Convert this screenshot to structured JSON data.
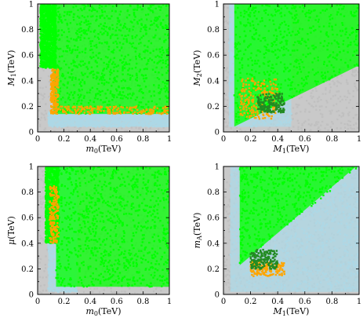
{
  "figure": {
    "layout": "2x2 grid of scatter panels"
  },
  "chart_data": [
    {
      "type": "scatter",
      "x_label": "m",
      "x_label_sub": "0",
      "x_label_unit": "(TeV)",
      "y_label": "M",
      "y_label_sub": "1",
      "y_label_unit": "(TeV)",
      "xlim": [
        0,
        1
      ],
      "ylim": [
        0,
        1
      ],
      "x_ticks": [
        "0",
        "0.2",
        "0.4",
        "0.6",
        "0.8",
        "1"
      ],
      "y_ticks": [
        "0",
        "0.2",
        "0.4",
        "0.6",
        "0.8",
        "1"
      ],
      "grid": false,
      "legend": "none",
      "series_colors": [
        "#c0c0c0",
        "#add8e6",
        "#00ff00",
        "#ffa500",
        "#228b22"
      ],
      "regions": [
        {
          "color": "#c0c0c0",
          "kind": "rect",
          "x": [
            0,
            1
          ],
          "y": [
            0,
            1
          ]
        },
        {
          "color": "#add8e6",
          "kind": "rect",
          "x": [
            0.08,
            1
          ],
          "y": [
            0.04,
            0.16
          ]
        },
        {
          "color": "#00ff00",
          "kind": "rect",
          "x": [
            0.12,
            1
          ],
          "y": [
            0.14,
            1
          ]
        },
        {
          "color": "#00ff00",
          "kind": "rect",
          "x": [
            0.02,
            0.14
          ],
          "y": [
            0.5,
            1
          ]
        },
        {
          "color": "#ffa500",
          "kind": "band",
          "x": [
            0.1,
            1
          ],
          "y": [
            0.14,
            0.2
          ]
        },
        {
          "color": "#ffa500",
          "kind": "band",
          "x": [
            0.1,
            0.16
          ],
          "y": [
            0.14,
            0.5
          ]
        }
      ]
    },
    {
      "type": "scatter",
      "x_label": "M",
      "x_label_sub": "1",
      "x_label_unit": "(TeV)",
      "y_label": "M",
      "y_label_sub": "2",
      "y_label_unit": "(TeV)",
      "xlim": [
        0,
        1
      ],
      "ylim": [
        0,
        1
      ],
      "x_ticks": [
        "0",
        "0.2",
        "0.4",
        "0.6",
        "0.8",
        "1"
      ],
      "y_ticks": [
        "0",
        "0.2",
        "0.4",
        "0.6",
        "0.8",
        "1"
      ],
      "grid": false,
      "legend": "none",
      "series_colors": [
        "#c0c0c0",
        "#add8e6",
        "#00ff00",
        "#ffa500",
        "#228b22"
      ],
      "regions": [
        {
          "color": "#c0c0c0",
          "kind": "rect",
          "x": [
            0,
            1
          ],
          "y": [
            0,
            1
          ]
        },
        {
          "color": "#add8e6",
          "kind": "rect",
          "x": [
            0.04,
            0.5
          ],
          "y": [
            0.04,
            1
          ]
        },
        {
          "color": "#00ff00",
          "kind": "upper",
          "x": [
            0.08,
            1
          ],
          "y": [
            0,
            1
          ],
          "slope": 0.52,
          "intercept": 0.0
        },
        {
          "color": "#ffa500",
          "kind": "band",
          "x": [
            0.12,
            0.4
          ],
          "y": [
            0.1,
            0.42
          ]
        },
        {
          "color": "#228b22",
          "kind": "band",
          "x": [
            0.25,
            0.45
          ],
          "y": [
            0.15,
            0.3
          ]
        }
      ]
    },
    {
      "type": "scatter",
      "x_label": "m",
      "x_label_sub": "0",
      "x_label_unit": "(TeV)",
      "y_label": "μ",
      "y_label_sub": "",
      "y_label_unit": "(TeV)",
      "xlim": [
        0,
        1
      ],
      "ylim": [
        0,
        1
      ],
      "x_ticks": [
        "0",
        "0.2",
        "0.4",
        "0.6",
        "0.8",
        "1"
      ],
      "y_ticks": [
        "0",
        "0.2",
        "0.4",
        "0.6",
        "0.8",
        "1"
      ],
      "grid": false,
      "legend": "none",
      "series_colors": [
        "#c0c0c0",
        "#add8e6",
        "#00ff00",
        "#ffa500",
        "#228b22"
      ],
      "regions": [
        {
          "color": "#c0c0c0",
          "kind": "rect",
          "x": [
            0,
            1
          ],
          "y": [
            0,
            1
          ]
        },
        {
          "color": "#add8e6",
          "kind": "rect",
          "x": [
            0.08,
            0.3
          ],
          "y": [
            0.02,
            1
          ]
        },
        {
          "color": "#00ff00",
          "kind": "rect",
          "x": [
            0.14,
            1
          ],
          "y": [
            0.06,
            1
          ]
        },
        {
          "color": "#00ff00",
          "kind": "rect",
          "x": [
            0.06,
            0.16
          ],
          "y": [
            0.4,
            1
          ]
        },
        {
          "color": "#ffa500",
          "kind": "band",
          "x": [
            0.09,
            0.16
          ],
          "y": [
            0.4,
            0.85
          ]
        }
      ]
    },
    {
      "type": "scatter",
      "x_label": "M",
      "x_label_sub": "1",
      "x_label_unit": "(TeV)",
      "y_label": "m",
      "y_label_sub": "A",
      "y_label_unit": "(TeV)",
      "xlim": [
        0,
        1
      ],
      "ylim": [
        0,
        1
      ],
      "x_ticks": [
        "0",
        "0.2",
        "0.4",
        "0.6",
        "0.8",
        "1"
      ],
      "y_ticks": [
        "0",
        "0.2",
        "0.4",
        "0.6",
        "0.8",
        "1"
      ],
      "grid": false,
      "legend": "none",
      "series_colors": [
        "#c0c0c0",
        "#add8e6",
        "#00ff00",
        "#ffa500",
        "#228b22"
      ],
      "regions": [
        {
          "color": "#c0c0c0",
          "kind": "rect",
          "x": [
            0,
            1
          ],
          "y": [
            0,
            1
          ]
        },
        {
          "color": "#add8e6",
          "kind": "rect",
          "x": [
            0.05,
            1
          ],
          "y": [
            0.02,
            1
          ]
        },
        {
          "color": "#00ff00",
          "kind": "upper",
          "x": [
            0.12,
            1
          ],
          "y": [
            0.15,
            1
          ],
          "slope": 0.9,
          "intercept": 0.12
        },
        {
          "color": "#ffa500",
          "kind": "band",
          "x": [
            0.2,
            0.45
          ],
          "y": [
            0.14,
            0.26
          ]
        },
        {
          "color": "#228b22",
          "kind": "band",
          "x": [
            0.2,
            0.4
          ],
          "y": [
            0.2,
            0.35
          ]
        }
      ]
    }
  ]
}
